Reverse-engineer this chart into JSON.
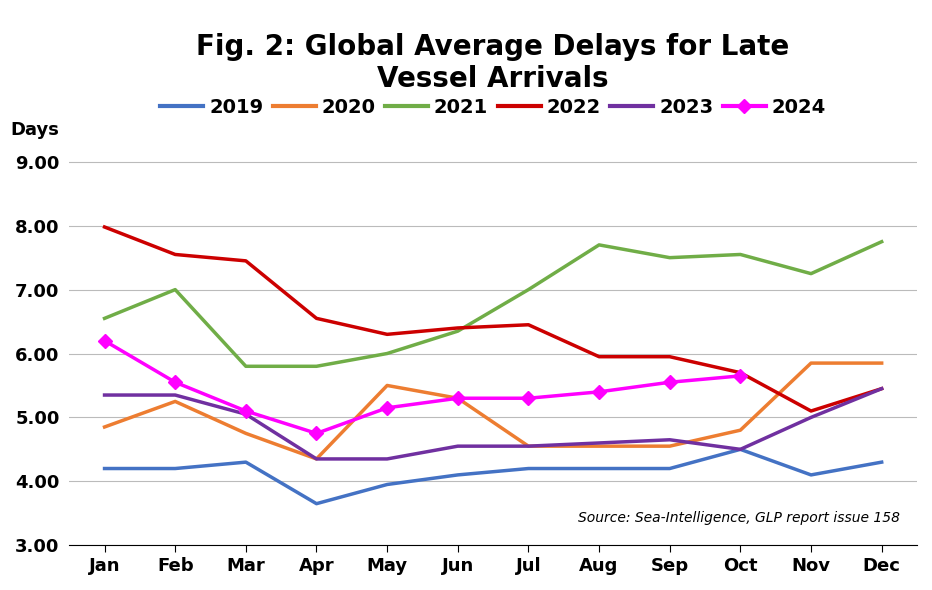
{
  "title": "Fig. 2: Global Average Delays for Late\nVessel Arrivals",
  "ylabel": "Days",
  "source_text": "Source: Sea-Intelligence, GLP report issue 158",
  "months": [
    "Jan",
    "Feb",
    "Mar",
    "Apr",
    "May",
    "Jun",
    "Jul",
    "Aug",
    "Sep",
    "Oct",
    "Nov",
    "Dec"
  ],
  "series_order": [
    "2019",
    "2020",
    "2021",
    "2022",
    "2023",
    "2024"
  ],
  "series": {
    "2019": {
      "values": [
        4.2,
        4.2,
        4.3,
        3.65,
        3.95,
        4.1,
        4.2,
        4.2,
        4.2,
        4.5,
        4.1,
        4.3
      ],
      "color": "#4472C4",
      "linewidth": 2.5,
      "marker": null
    },
    "2020": {
      "values": [
        4.85,
        5.25,
        4.75,
        4.35,
        5.5,
        5.3,
        4.55,
        4.55,
        4.55,
        4.8,
        5.85,
        5.85
      ],
      "color": "#ED7D31",
      "linewidth": 2.5,
      "marker": null
    },
    "2021": {
      "values": [
        6.55,
        7.0,
        5.8,
        5.8,
        6.0,
        6.35,
        7.0,
        7.7,
        7.5,
        7.55,
        7.25,
        7.75
      ],
      "color": "#70AD47",
      "linewidth": 2.5,
      "marker": null
    },
    "2022": {
      "values": [
        7.98,
        7.55,
        7.45,
        6.55,
        6.3,
        6.4,
        6.45,
        5.95,
        5.95,
        5.7,
        5.1,
        5.45
      ],
      "color": "#CC0000",
      "linewidth": 2.5,
      "marker": null
    },
    "2023": {
      "values": [
        5.35,
        5.35,
        5.05,
        4.35,
        4.35,
        4.55,
        4.55,
        4.6,
        4.65,
        4.5,
        5.0,
        5.45
      ],
      "color": "#7030A0",
      "linewidth": 2.5,
      "marker": null
    },
    "2024": {
      "values": [
        6.2,
        5.55,
        5.1,
        4.75,
        5.15,
        5.3,
        5.3,
        5.4,
        5.55,
        5.65,
        null,
        null
      ],
      "color": "#FF00FF",
      "linewidth": 2.5,
      "marker": "D"
    }
  },
  "ylim": [
    3.0,
    9.3
  ],
  "yticks": [
    3.0,
    4.0,
    5.0,
    6.0,
    7.0,
    8.0,
    9.0
  ],
  "background_color": "#FFFFFF",
  "grid_color": "#BBBBBB",
  "title_fontsize": 20,
  "axis_label_fontsize": 13,
  "tick_fontsize": 13,
  "legend_fontsize": 14
}
